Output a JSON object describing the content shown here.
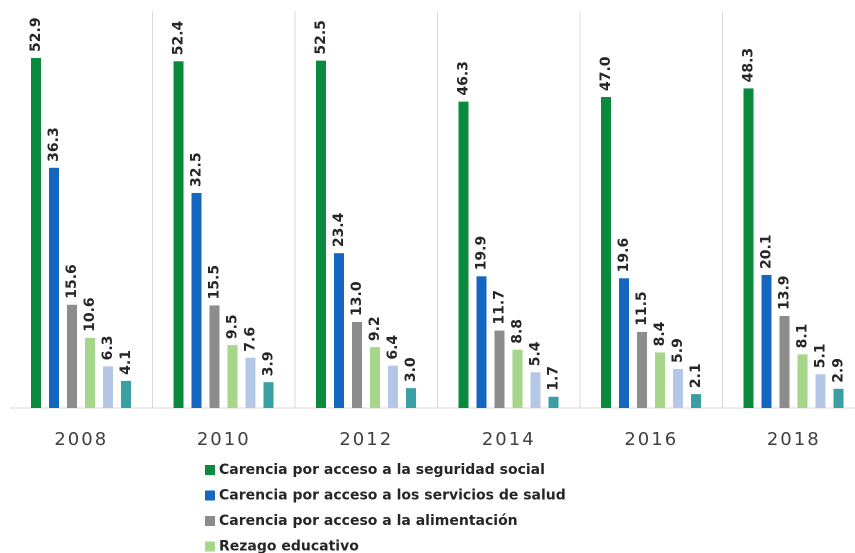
{
  "chart_data": {
    "type": "bar",
    "categories": [
      "2008",
      "2010",
      "2012",
      "2014",
      "2016",
      "2018"
    ],
    "series": [
      {
        "name": "Carencia por acceso a la seguridad social",
        "color": "#0a8a3c",
        "values": [
          52.9,
          52.4,
          52.5,
          46.3,
          47.0,
          48.3
        ],
        "value_labels": [
          "52.9",
          "52.4",
          "52.5",
          "46.3",
          "47.0",
          "48.3"
        ]
      },
      {
        "name": "Carencia por acceso a los servicios de salud",
        "color": "#1466c0",
        "values": [
          36.3,
          32.5,
          23.4,
          19.9,
          19.6,
          20.1
        ]
      },
      {
        "name": "Carencia por acceso a la alimentación",
        "color": "#8c8c8c",
        "values": [
          15.6,
          15.5,
          13.0,
          11.7,
          11.5,
          13.9
        ],
        "value_labels": [
          "15.6",
          "15.5",
          "13.0",
          "11.7",
          "11.5",
          "13.9"
        ]
      },
      {
        "name": "Rezago educativo",
        "color": "#a6d68a",
        "values": [
          10.6,
          9.5,
          9.2,
          8.8,
          8.4,
          8.1
        ]
      },
      {
        "color": "#b4c7e7",
        "values": [
          6.3,
          7.6,
          6.4,
          5.4,
          5.9,
          5.1
        ]
      },
      {
        "color": "#3a9ea5",
        "values": [
          4.1,
          3.9,
          3.0,
          1.7,
          2.1,
          2.9
        ],
        "value_labels": [
          "4.1",
          "3.9",
          "3.0",
          "1.7",
          "2.1",
          "2.9"
        ]
      }
    ],
    "ylim": [
      0,
      60
    ]
  }
}
